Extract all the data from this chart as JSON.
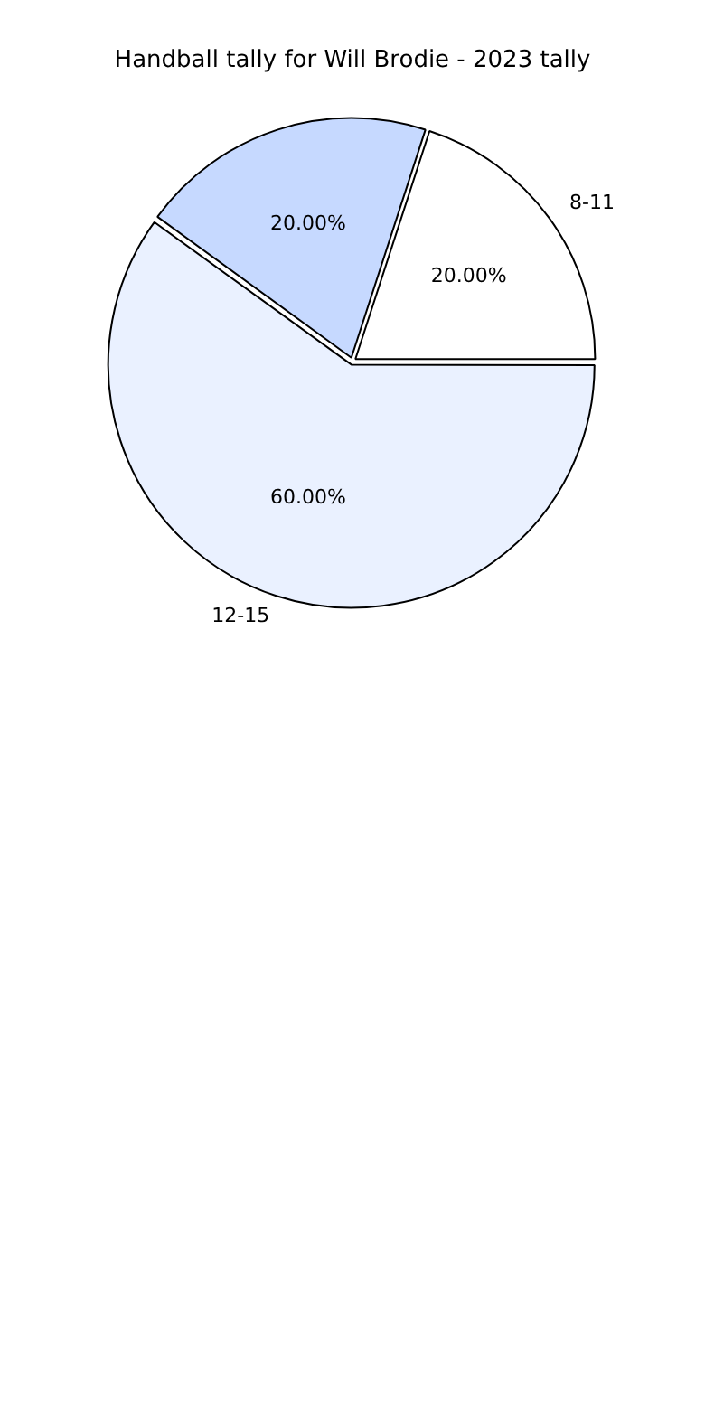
{
  "chart_data": {
    "type": "pie",
    "title": "Handball tally for Will Brodie - 2023 tally",
    "categories": [
      "8-11",
      "12-15",
      null
    ],
    "values": [
      20,
      60,
      20
    ],
    "colors": [
      "#ffffff",
      "#eaf1ff",
      "#c6d9ff"
    ],
    "value_labels": [
      "20.00%",
      "60.00%",
      "20.00%"
    ]
  }
}
